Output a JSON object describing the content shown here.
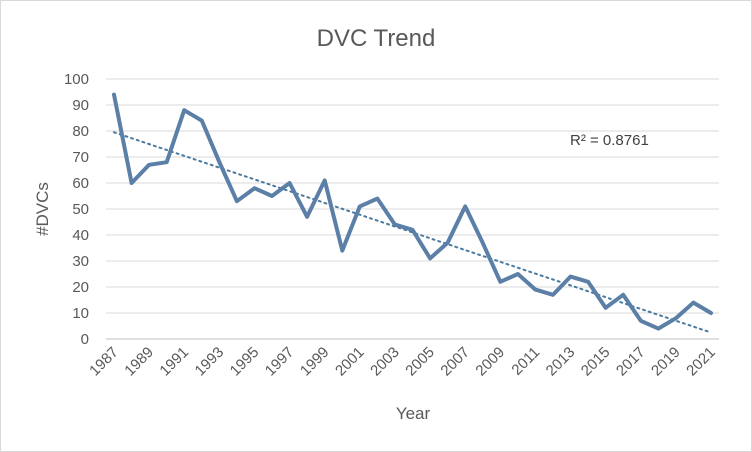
{
  "chart_data": {
    "type": "line",
    "title": "DVC Trend",
    "xlabel": "Year",
    "ylabel": "#DVCs",
    "ylim": [
      0,
      100
    ],
    "yticks": [
      0,
      10,
      20,
      30,
      40,
      50,
      60,
      70,
      80,
      90,
      100
    ],
    "x": [
      1987,
      1988,
      1989,
      1990,
      1991,
      1992,
      1993,
      1994,
      1995,
      1996,
      1997,
      1998,
      1999,
      2000,
      2001,
      2002,
      2003,
      2004,
      2005,
      2006,
      2007,
      2008,
      2009,
      2010,
      2011,
      2012,
      2013,
      2014,
      2015,
      2016,
      2017,
      2018,
      2019,
      2020,
      2021
    ],
    "xtick_labels": [
      "1987",
      "1989",
      "1991",
      "1993",
      "1995",
      "1997",
      "1999",
      "2001",
      "2003",
      "2005",
      "2007",
      "2009",
      "2011",
      "2013",
      "2015",
      "2017",
      "2019",
      "2021"
    ],
    "series": [
      {
        "values": [
          94,
          60,
          67,
          68,
          88,
          84,
          68,
          53,
          58,
          55,
          60,
          47,
          61,
          34,
          51,
          54,
          44,
          42,
          31,
          37,
          51,
          37,
          22,
          25,
          19,
          17,
          24,
          22,
          12,
          17,
          7,
          4,
          8,
          14,
          10
        ],
        "color": "#5b7fa6"
      }
    ],
    "trendline": {
      "type": "linear",
      "start": [
        1987,
        79.5
      ],
      "end": [
        2021,
        2.5
      ],
      "color": "#4a7aa0",
      "style": "dotted",
      "annotation": "R² = 0.8761"
    },
    "grid": true,
    "legend": "none"
  }
}
